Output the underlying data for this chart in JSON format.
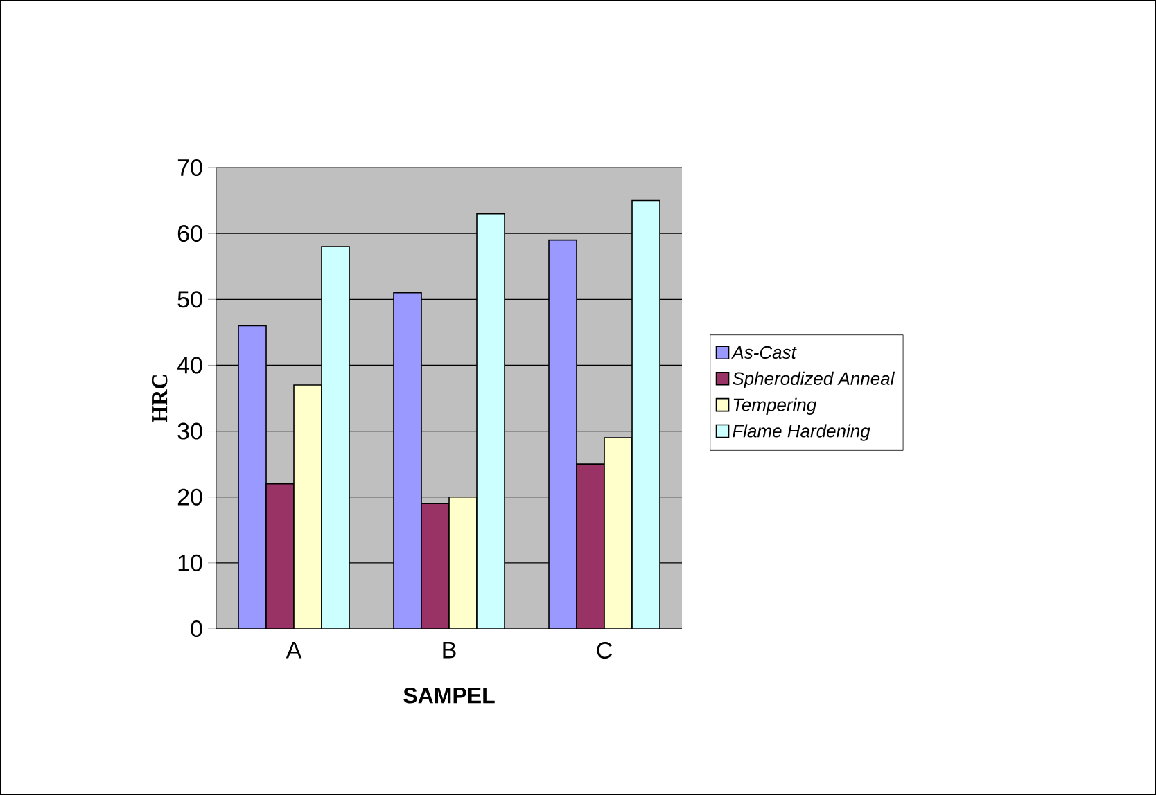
{
  "chart_data": {
    "type": "bar",
    "xlabel": "SAMPEL",
    "ylabel": "HRC",
    "categories": [
      "A",
      "B",
      "C"
    ],
    "series": [
      {
        "name": "*As-Cast*",
        "color": "#9999ff",
        "values": [
          46,
          51,
          59
        ]
      },
      {
        "name": "*Spherodized Anneal*",
        "color": "#993366",
        "values": [
          22,
          19,
          25
        ]
      },
      {
        "name": "*Tempering*",
        "color": "#ffffcc",
        "values": [
          37,
          20,
          29
        ]
      },
      {
        "name": "*Flame Hardening*",
        "color": "#ccffff",
        "values": [
          58,
          63,
          65
        ]
      }
    ],
    "ylim": [
      0,
      70
    ],
    "yticks": [
      0,
      10,
      20,
      30,
      40,
      50,
      60,
      70
    ],
    "grid": "y",
    "legend": "right"
  }
}
